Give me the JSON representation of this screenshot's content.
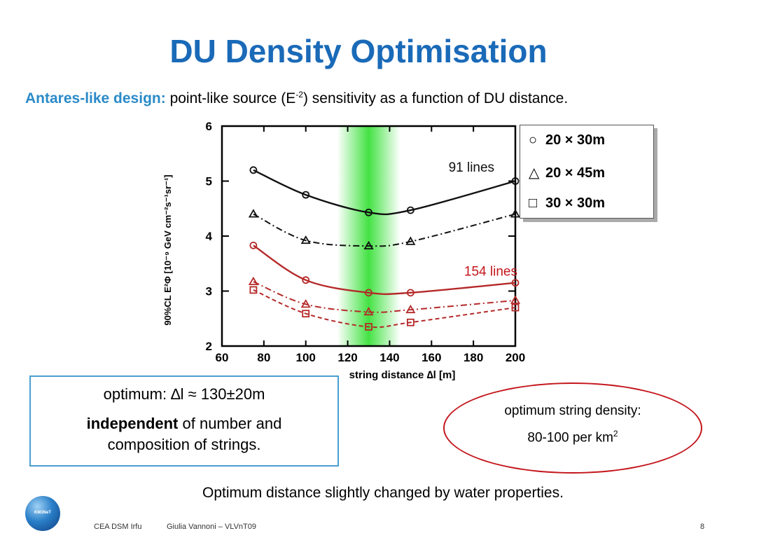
{
  "slide": {
    "title": "DU Density Optimisation",
    "subtitle_lead": "Antares-like design:",
    "subtitle_pre": " point-like source (E",
    "subtitle_sup": "-2",
    "subtitle_post": ") sensitivity as a function of DU distance.",
    "optimum_line": "optimum: ∆l ≈ 130±20m",
    "independent_bold": "independent",
    "independent_rest": " of number and composition of strings.",
    "density_label": "optimum string density:",
    "density_value": "80-100 per km",
    "density_sup": "2",
    "bottom_note": "Optimum distance slightly changed by water properties.",
    "footer_left": "CEA DSM Irfu",
    "footer_author": "Giulia Vannoni – VLVnT09",
    "page_number": "8",
    "logo_text": "KM3NeT"
  },
  "legend": [
    {
      "symbol": "○",
      "label": "20 × 30m"
    },
    {
      "symbol": "△",
      "label": "20 × 45m"
    },
    {
      "symbol": "□",
      "label": "30 × 30m"
    }
  ],
  "colors": {
    "title": "#1a6ab8",
    "accent": "#2a8ac8",
    "red": "#c4161c",
    "series_91": "#111111",
    "series_154": "#b52a2a",
    "band": "#22dd22"
  },
  "chart_data": {
    "type": "line",
    "xlabel": "string distance ∆l [m]",
    "ylabel": "90%CL E²Φ [10⁻⁹ GeV cm⁻²s⁻¹sr⁻¹]",
    "xlim": [
      60,
      200
    ],
    "ylim": [
      2,
      6
    ],
    "xticks": [
      60,
      80,
      100,
      120,
      140,
      160,
      180,
      200
    ],
    "yticks": [
      2,
      3,
      4,
      5,
      6
    ],
    "optimal_band": [
      115,
      145
    ],
    "annotations": [
      {
        "text": "91 lines",
        "color": "#111111"
      },
      {
        "text": "154 lines",
        "color": "#c4161c"
      }
    ],
    "series": [
      {
        "group": "91 lines",
        "marker": "circle",
        "style": "solid",
        "x": [
          75,
          100,
          130,
          150,
          200
        ],
        "y": [
          5.2,
          4.75,
          4.43,
          4.47,
          5.0
        ]
      },
      {
        "group": "91 lines",
        "marker": "triangle",
        "style": "dashdot",
        "x": [
          75,
          100,
          130,
          150,
          200
        ],
        "y": [
          4.4,
          3.92,
          3.82,
          3.9,
          4.4
        ]
      },
      {
        "group": "154 lines",
        "marker": "circle",
        "style": "solid",
        "x": [
          75,
          100,
          130,
          150,
          200
        ],
        "y": [
          3.83,
          3.2,
          2.97,
          2.97,
          3.15
        ]
      },
      {
        "group": "154 lines",
        "marker": "triangle",
        "style": "dashdot",
        "x": [
          75,
          100,
          130,
          150,
          200
        ],
        "y": [
          3.17,
          2.76,
          2.62,
          2.66,
          2.83
        ]
      },
      {
        "group": "154 lines",
        "marker": "square",
        "style": "dashed",
        "x": [
          75,
          100,
          130,
          150,
          200
        ],
        "y": [
          3.02,
          2.59,
          2.35,
          2.43,
          2.7
        ]
      }
    ]
  }
}
